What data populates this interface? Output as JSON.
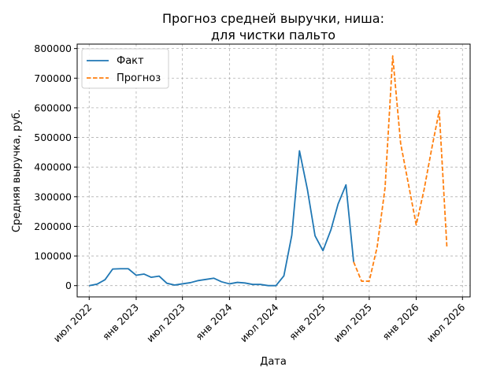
{
  "chart_data": {
    "type": "line",
    "title_lines": [
      "Прогноз средней выручки, ниша:",
      "для чистки пальто"
    ],
    "xlabel": "Дата",
    "ylabel": "Средняя выручка, руб.",
    "ylim": [
      -38000,
      815000
    ],
    "xlim": [
      "2022-05-15",
      "2026-07-31"
    ],
    "grid": true,
    "legend_position": "top-left",
    "x_ticks": [
      {
        "date": "2022-07-01",
        "label": "июл 2022"
      },
      {
        "date": "2023-01-01",
        "label": "янв 2023"
      },
      {
        "date": "2023-07-01",
        "label": "июл 2023"
      },
      {
        "date": "2024-01-01",
        "label": "янв 2024"
      },
      {
        "date": "2024-07-01",
        "label": "июл 2024"
      },
      {
        "date": "2025-01-01",
        "label": "янв 2025"
      },
      {
        "date": "2025-07-01",
        "label": "июл 2025"
      },
      {
        "date": "2026-01-01",
        "label": "янв 2026"
      },
      {
        "date": "2026-07-01",
        "label": "июл 2026"
      }
    ],
    "y_ticks": [
      0,
      100000,
      200000,
      300000,
      400000,
      500000,
      600000,
      700000,
      800000
    ],
    "series": [
      {
        "name": "Факт",
        "color": "#1f77b4",
        "style": "solid",
        "points": [
          [
            "2022-07-01",
            0
          ],
          [
            "2022-08-01",
            5000
          ],
          [
            "2022-09-01",
            20000
          ],
          [
            "2022-10-01",
            56000
          ],
          [
            "2022-11-01",
            57000
          ],
          [
            "2022-12-01",
            57000
          ],
          [
            "2023-01-01",
            35000
          ],
          [
            "2023-02-01",
            39000
          ],
          [
            "2023-03-01",
            28000
          ],
          [
            "2023-04-01",
            32000
          ],
          [
            "2023-05-01",
            8000
          ],
          [
            "2023-06-01",
            2000
          ],
          [
            "2023-07-01",
            6000
          ],
          [
            "2023-08-01",
            10000
          ],
          [
            "2023-09-01",
            17000
          ],
          [
            "2023-10-01",
            21000
          ],
          [
            "2023-11-01",
            25000
          ],
          [
            "2023-12-01",
            13000
          ],
          [
            "2024-01-01",
            6000
          ],
          [
            "2024-02-01",
            11000
          ],
          [
            "2024-03-01",
            9000
          ],
          [
            "2024-04-01",
            4000
          ],
          [
            "2024-05-01",
            4000
          ],
          [
            "2024-06-01",
            0
          ],
          [
            "2024-07-01",
            0
          ],
          [
            "2024-08-01",
            33000
          ],
          [
            "2024-09-01",
            170000
          ],
          [
            "2024-10-01",
            455000
          ],
          [
            "2024-11-01",
            325000
          ],
          [
            "2024-12-01",
            168000
          ],
          [
            "2025-01-01",
            118000
          ],
          [
            "2025-02-01",
            188000
          ],
          [
            "2025-03-01",
            275000
          ],
          [
            "2025-04-01",
            340000
          ],
          [
            "2025-05-01",
            80000
          ]
        ]
      },
      {
        "name": "Прогноз",
        "color": "#ff7f0e",
        "style": "dashed",
        "points": [
          [
            "2025-05-01",
            80000
          ],
          [
            "2025-06-01",
            15000
          ],
          [
            "2025-07-01",
            15000
          ],
          [
            "2025-08-01",
            130000
          ],
          [
            "2025-09-01",
            330000
          ],
          [
            "2025-10-01",
            775000
          ],
          [
            "2025-11-01",
            480000
          ],
          [
            "2025-12-01",
            345000
          ],
          [
            "2026-01-01",
            205000
          ],
          [
            "2026-02-01",
            325000
          ],
          [
            "2026-03-01",
            455000
          ],
          [
            "2026-04-01",
            590000
          ],
          [
            "2026-05-01",
            130000
          ]
        ]
      }
    ]
  }
}
